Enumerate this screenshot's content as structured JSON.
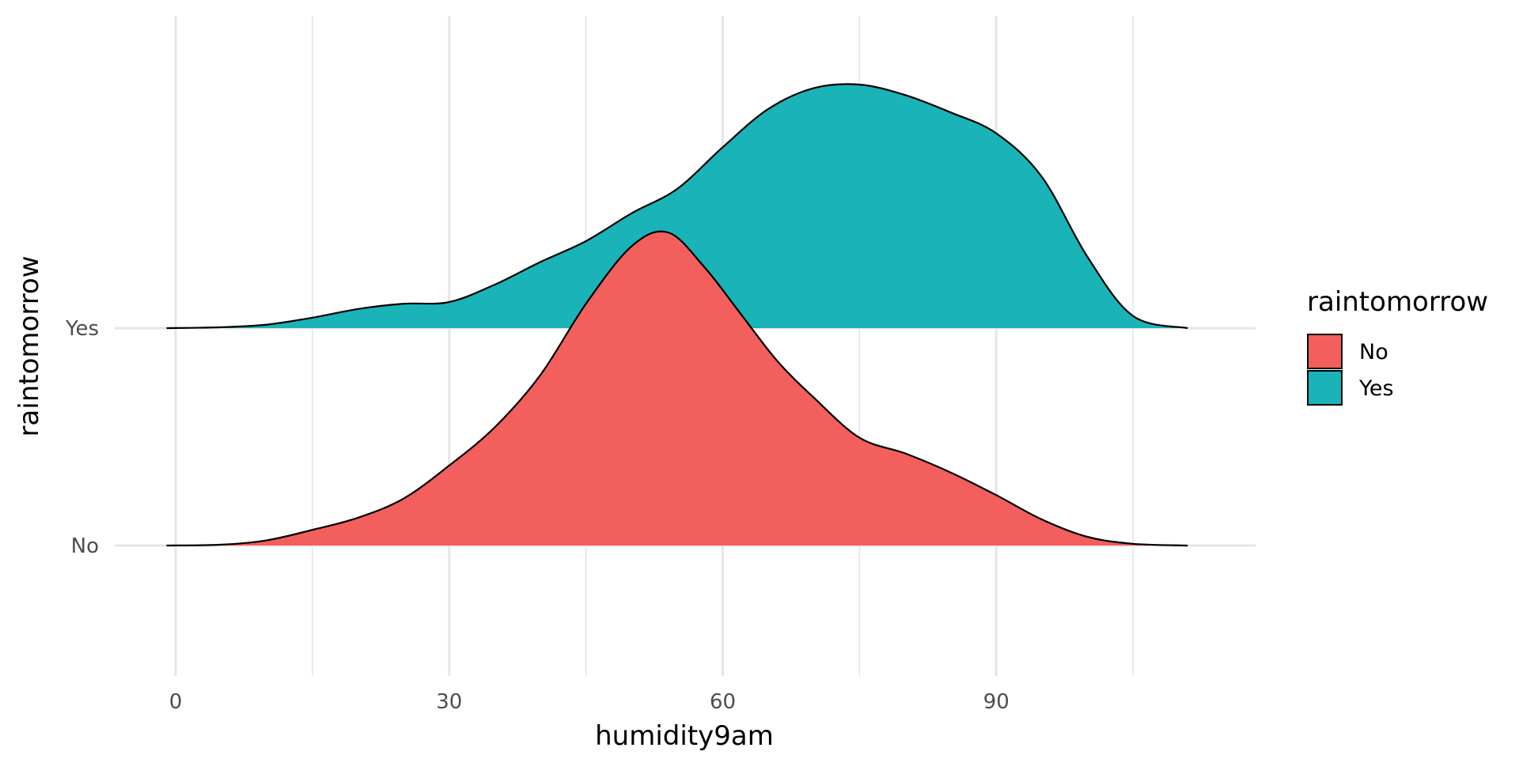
{
  "chart_data": {
    "type": "area",
    "subtype": "ridgeline-density",
    "title": "",
    "xlabel": "humidity9am",
    "ylabel": "raintomorrow",
    "xlim": [
      -1,
      111
    ],
    "x_ticks": [
      "0",
      "30",
      "60",
      "90"
    ],
    "x_tick_values": [
      0,
      30,
      60,
      90
    ],
    "categories": [
      "No",
      "Yes"
    ],
    "grid": true,
    "legend": {
      "title": "raintomorrow",
      "position": "right",
      "entries": [
        "No",
        "Yes"
      ]
    },
    "colors": {
      "No": "#F25F5C",
      "Yes": "#1AB3B7"
    },
    "series": [
      {
        "name": "No",
        "x": [
          -1,
          5,
          10,
          15,
          20,
          25,
          30,
          35,
          40,
          45,
          50,
          54,
          58,
          62,
          66,
          70,
          75,
          80,
          85,
          90,
          95,
          100,
          105,
          111
        ],
        "y": [
          0,
          0.005,
          0.03,
          0.09,
          0.16,
          0.27,
          0.46,
          0.68,
          0.98,
          1.39,
          1.72,
          1.8,
          1.6,
          1.33,
          1.06,
          0.85,
          0.62,
          0.53,
          0.42,
          0.29,
          0.15,
          0.05,
          0.01,
          0
        ]
      },
      {
        "name": "Yes",
        "x": [
          -1,
          5,
          10,
          15,
          20,
          25,
          30,
          35,
          40,
          45,
          50,
          55,
          60,
          65,
          70,
          75,
          80,
          85,
          90,
          95,
          100,
          105,
          111
        ],
        "y": [
          0,
          0.005,
          0.02,
          0.06,
          0.11,
          0.14,
          0.15,
          0.25,
          0.38,
          0.5,
          0.66,
          0.8,
          1.04,
          1.26,
          1.38,
          1.4,
          1.34,
          1.24,
          1.12,
          0.87,
          0.41,
          0.07,
          0
        ]
      }
    ]
  }
}
